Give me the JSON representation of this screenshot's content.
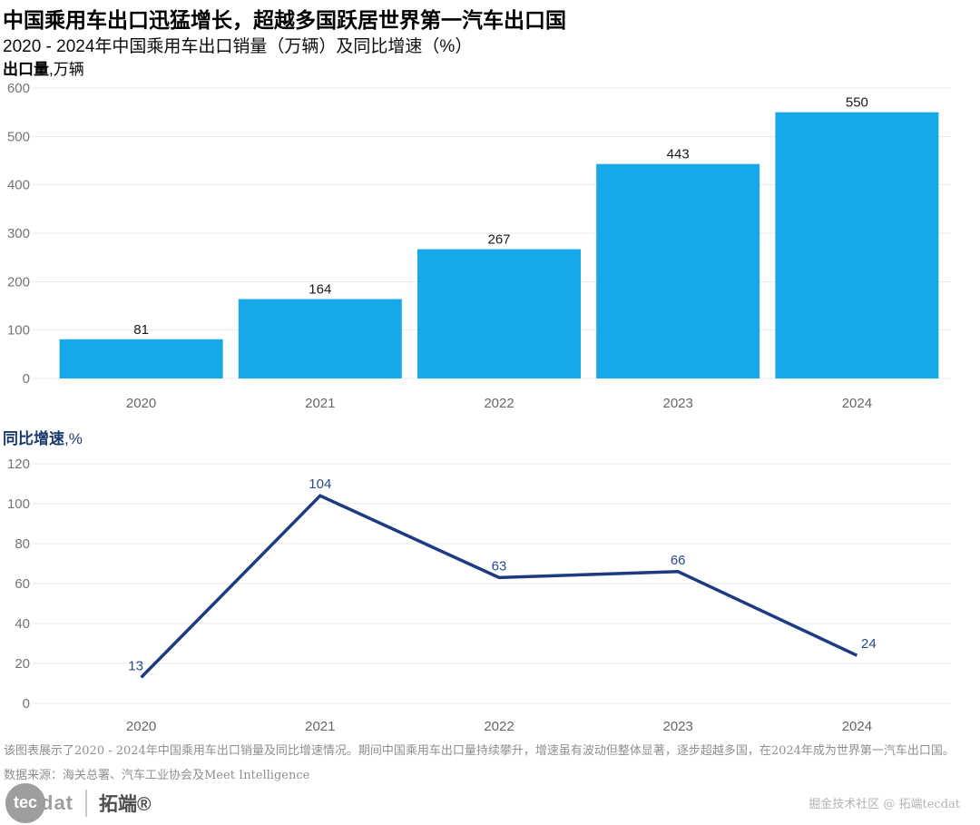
{
  "header": {
    "title": "中国乘用车出口迅猛增长，超越多国跃居世界第一汽车出口国",
    "subtitle": "2020 - 2024年中国乘用车出口销量（万辆）及同比增速（%）"
  },
  "chart_data": [
    {
      "type": "bar",
      "name": "export-volume",
      "axis_title_main": "出口量",
      "axis_title_unit": ",万辆",
      "categories": [
        "2020",
        "2021",
        "2022",
        "2023",
        "2024"
      ],
      "values": [
        81,
        164,
        267,
        443,
        550
      ],
      "ylim": [
        0,
        600
      ],
      "ytick_step": 100,
      "grid": true,
      "legend": "none",
      "bar_color": "#16A8E8",
      "value_label_color": "#1A1A1A"
    },
    {
      "type": "line",
      "name": "yoy-growth",
      "axis_title_main": "同比增速",
      "axis_title_unit": ",%",
      "categories": [
        "2020",
        "2021",
        "2022",
        "2023",
        "2024"
      ],
      "values": [
        13,
        104,
        63,
        66,
        24
      ],
      "ylim": [
        0,
        120
      ],
      "ytick_step": 20,
      "grid": true,
      "legend": "none",
      "line_color": "#1D3B82",
      "value_label_color": "#2A4A8C"
    }
  ],
  "footer": {
    "description": "该图表展示了2020 - 2024年中国乘用车出口销量及同比增速情况。期间中国乘用车出口量持续攀升，增速虽有波动但整体显著，逐步超越多国，在2024年成为世界第一汽车出口国。",
    "source": "数据来源：海关总署、汽车工业协会及Meet Intelligence"
  },
  "branding": {
    "logo_circle": "tec",
    "logo_rest": "dat",
    "logo_cn": "拓端®",
    "community": "掘金技术社区 @ 拓端tecdat"
  }
}
